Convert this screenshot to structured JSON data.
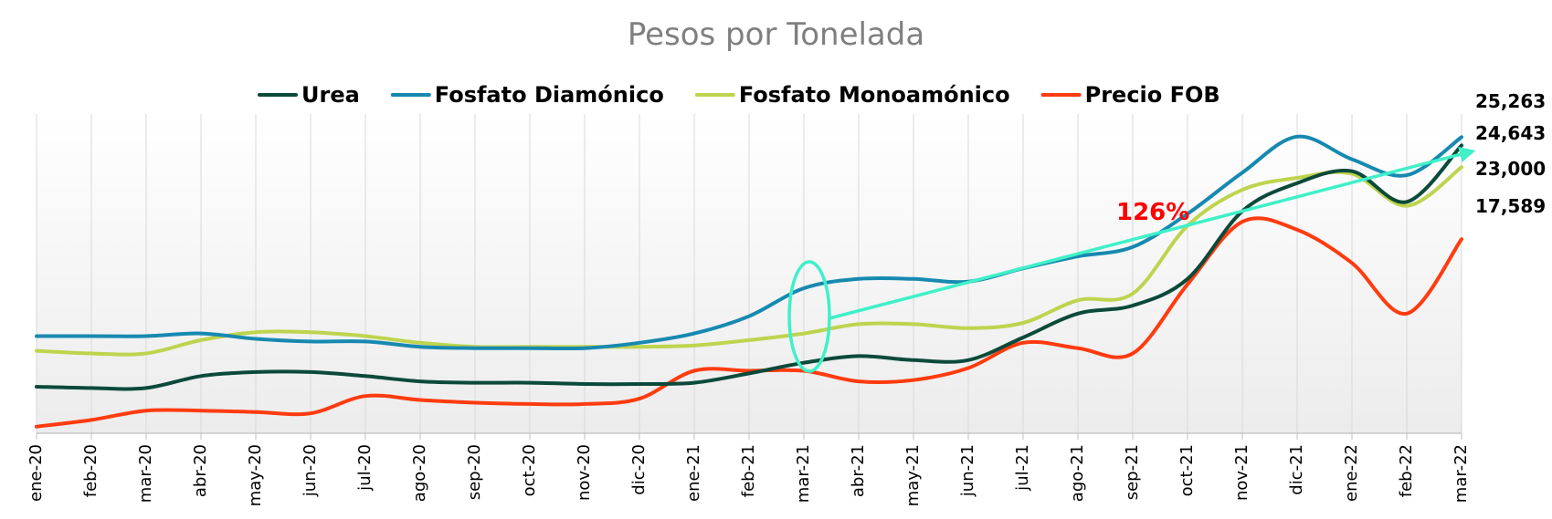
{
  "chart_data": {
    "type": "line",
    "title": "Pesos por Tonelada",
    "xlabel": "",
    "ylabel": "",
    "ylim": [
      3000,
      27000
    ],
    "grid": "vertical",
    "legend_position": "top",
    "categories": [
      "ene-20",
      "feb-20",
      "mar-20",
      "abr-20",
      "may-20",
      "jun-20",
      "jul-20",
      "ago-20",
      "sep-20",
      "oct-20",
      "nov-20",
      "dic-20",
      "ene-21",
      "feb-21",
      "mar-21",
      "abr-21",
      "may-21",
      "jun-21",
      "jul-21",
      "ago-21",
      "sep-21",
      "oct-21",
      "nov-21",
      "dic-21",
      "ene-22",
      "feb-22",
      "mar-22"
    ],
    "series": [
      {
        "name": "Urea",
        "color": "#0b4a3a",
        "values": [
          6500,
          6400,
          6400,
          7300,
          7600,
          7600,
          7300,
          6900,
          6800,
          6800,
          6700,
          6700,
          6800,
          7500,
          8300,
          8800,
          8500,
          8500,
          10200,
          12000,
          12600,
          14600,
          19700,
          21800,
          22700,
          20400,
          24643
        ]
      },
      {
        "name": "Fosfato Diamónico",
        "color": "#1789b0",
        "values": [
          10300,
          10300,
          10300,
          10500,
          10100,
          9900,
          9900,
          9500,
          9400,
          9400,
          9400,
          9800,
          10500,
          11800,
          13900,
          14600,
          14600,
          14400,
          15400,
          16300,
          17000,
          19500,
          22600,
          25300,
          23600,
          22400,
          25263
        ]
      },
      {
        "name": "Fosfato Monoamónico",
        "color": "#bed44e",
        "values": [
          9200,
          9000,
          9000,
          10000,
          10600,
          10600,
          10300,
          9800,
          9500,
          9500,
          9500,
          9500,
          9600,
          10000,
          10500,
          11200,
          11200,
          10900,
          11300,
          13000,
          13500,
          18600,
          21300,
          22200,
          22500,
          20100,
          23000
        ]
      },
      {
        "name": "Precio FOB",
        "color": "#ff3b0f",
        "values": [
          3500,
          4000,
          4700,
          4700,
          4600,
          4500,
          5800,
          5500,
          5300,
          5200,
          5200,
          5600,
          7700,
          7700,
          7700,
          6900,
          7000,
          7900,
          9800,
          9400,
          9000,
          14200,
          18900,
          18300,
          15800,
          12000,
          17589
        ]
      }
    ],
    "end_labels": [
      "25,263",
      "24,643",
      "23,000",
      "17,589"
    ],
    "annotation": {
      "text": "126%",
      "color": "#ff0000",
      "arrow_color": "#3ff0c8",
      "from": "mar-21",
      "to": "mar-22"
    }
  }
}
